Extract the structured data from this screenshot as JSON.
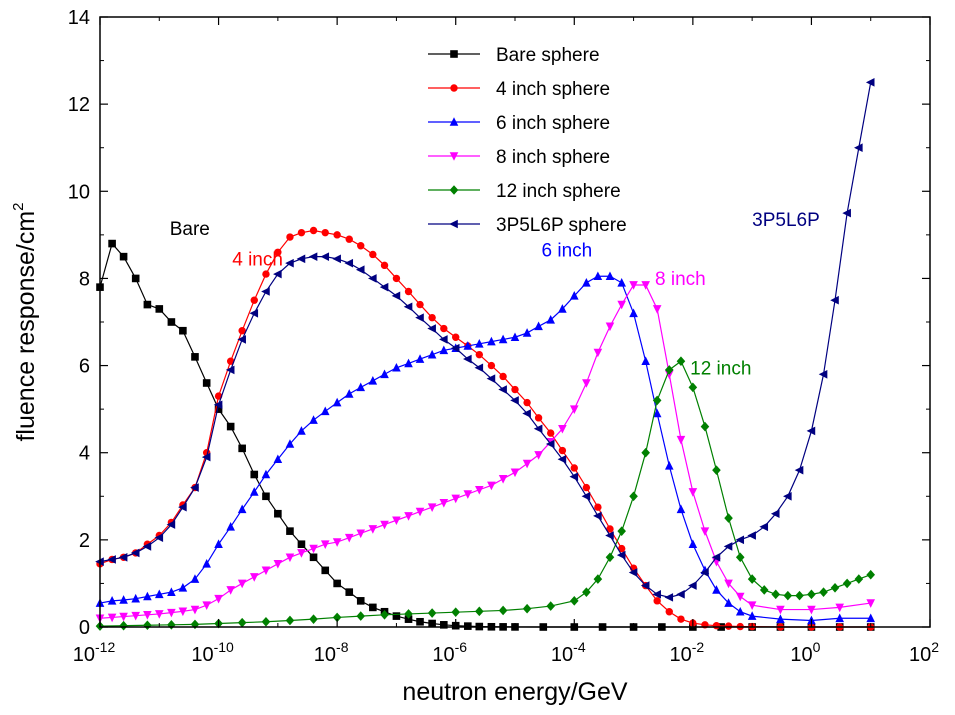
{
  "chart_data": {
    "type": "scatter",
    "title": "",
    "xlabel": "neutron energy/GeV",
    "ylabel": "fluence response/cm",
    "ylabel_superscript": "2",
    "x_scale": "log",
    "xlim": [
      1e-12,
      100
    ],
    "ylim": [
      0,
      14
    ],
    "x_ticks": [
      {
        "base": "10",
        "exp": "-12"
      },
      {
        "base": "10",
        "exp": "-10"
      },
      {
        "base": "10",
        "exp": "-8"
      },
      {
        "base": "10",
        "exp": "-6"
      },
      {
        "base": "10",
        "exp": "-4"
      },
      {
        "base": "10",
        "exp": "-2"
      },
      {
        "base": "10",
        "exp": "0"
      },
      {
        "base": "10",
        "exp": "2"
      }
    ],
    "y_ticks": [
      "0",
      "2",
      "4",
      "6",
      "8",
      "10",
      "12",
      "14"
    ],
    "grid": false,
    "legend_position": "top-center",
    "series": [
      {
        "name": "Bare sphere",
        "color": "#000000",
        "marker": "square",
        "x": [
          1e-12,
          1.6e-12,
          2.5e-12,
          4e-12,
          6.3e-12,
          1e-11,
          1.6e-11,
          2.5e-11,
          4e-11,
          6.3e-11,
          1e-10,
          1.6e-10,
          2.5e-10,
          4e-10,
          6.3e-10,
          1e-09,
          1.6e-09,
          2.5e-09,
          4e-09,
          6.3e-09,
          1e-08,
          1.6e-08,
          2.5e-08,
          4e-08,
          6.3e-08,
          1e-07,
          1.6e-07,
          2.5e-07,
          4e-07,
          6.3e-07,
          1e-06,
          1.6e-06,
          2.5e-06,
          4e-06,
          6.3e-06,
          1e-05,
          3e-05,
          0.0001,
          0.0003,
          0.001,
          0.003,
          0.01,
          0.03,
          0.1,
          0.3,
          1,
          3,
          10
        ],
        "y": [
          7.8,
          8.8,
          8.5,
          8.0,
          7.4,
          7.3,
          7.0,
          6.8,
          6.2,
          5.6,
          5.0,
          4.6,
          4.1,
          3.5,
          3.0,
          2.6,
          2.2,
          1.9,
          1.6,
          1.3,
          1.0,
          0.8,
          0.6,
          0.45,
          0.35,
          0.25,
          0.18,
          0.12,
          0.08,
          0.05,
          0.03,
          0.02,
          0.01,
          0.005,
          0.003,
          0.002,
          0.0,
          0.0,
          0.0,
          0.0,
          0.0,
          0.0,
          0.0,
          0.0,
          0.0,
          0.0,
          0.0,
          0.0
        ]
      },
      {
        "name": "4 inch sphere",
        "color": "#ff0000",
        "marker": "circle",
        "x": [
          1e-12,
          1.6e-12,
          2.5e-12,
          4e-12,
          6.3e-12,
          1e-11,
          1.6e-11,
          2.5e-11,
          4e-11,
          6.3e-11,
          1e-10,
          1.6e-10,
          2.5e-10,
          4e-10,
          6.3e-10,
          1e-09,
          1.6e-09,
          2.5e-09,
          4e-09,
          6.3e-09,
          1e-08,
          1.6e-08,
          2.5e-08,
          4e-08,
          6.3e-08,
          1e-07,
          1.6e-07,
          2.5e-07,
          4e-07,
          6.3e-07,
          1e-06,
          1.6e-06,
          2.5e-06,
          4e-06,
          6.3e-06,
          1e-05,
          1.6e-05,
          2.5e-05,
          4e-05,
          6.3e-05,
          0.0001,
          0.00016,
          0.00025,
          0.0004,
          0.00063,
          0.001,
          0.0016,
          0.0025,
          0.004,
          0.0063,
          0.01,
          0.016,
          0.025,
          0.04,
          0.063,
          0.1,
          0.3,
          1,
          3,
          10
        ],
        "y": [
          1.45,
          1.55,
          1.6,
          1.7,
          1.9,
          2.1,
          2.4,
          2.8,
          3.2,
          4.0,
          5.3,
          6.1,
          6.8,
          7.5,
          8.1,
          8.6,
          8.95,
          9.05,
          9.1,
          9.05,
          9.0,
          8.9,
          8.75,
          8.55,
          8.3,
          8.0,
          7.7,
          7.4,
          7.1,
          6.85,
          6.65,
          6.45,
          6.25,
          6.0,
          5.75,
          5.45,
          5.15,
          4.8,
          4.45,
          4.05,
          3.65,
          3.2,
          2.75,
          2.25,
          1.8,
          1.35,
          0.95,
          0.6,
          0.35,
          0.18,
          0.09,
          0.05,
          0.03,
          0.02,
          0.01,
          0.01,
          0.0,
          0.0,
          0.0,
          0.0
        ]
      },
      {
        "name": "6 inch sphere",
        "color": "#0000ff",
        "marker": "triangle-up",
        "x": [
          1e-12,
          1.6e-12,
          2.5e-12,
          4e-12,
          6.3e-12,
          1e-11,
          1.6e-11,
          2.5e-11,
          4e-11,
          6.3e-11,
          1e-10,
          1.6e-10,
          2.5e-10,
          4e-10,
          6.3e-10,
          1e-09,
          1.6e-09,
          2.5e-09,
          4e-09,
          6.3e-09,
          1e-08,
          1.6e-08,
          2.5e-08,
          4e-08,
          6.3e-08,
          1e-07,
          1.6e-07,
          2.5e-07,
          4e-07,
          6.3e-07,
          1e-06,
          1.6e-06,
          2.5e-06,
          4e-06,
          6.3e-06,
          1e-05,
          1.6e-05,
          2.5e-05,
          4e-05,
          6.3e-05,
          0.0001,
          0.00016,
          0.00025,
          0.0004,
          0.00063,
          0.001,
          0.0016,
          0.0025,
          0.004,
          0.0063,
          0.01,
          0.016,
          0.025,
          0.04,
          0.063,
          0.1,
          0.3,
          1,
          3,
          10
        ],
        "y": [
          0.55,
          0.6,
          0.62,
          0.65,
          0.7,
          0.75,
          0.8,
          0.9,
          1.1,
          1.45,
          1.9,
          2.3,
          2.7,
          3.1,
          3.5,
          3.85,
          4.2,
          4.5,
          4.75,
          4.95,
          5.15,
          5.35,
          5.5,
          5.65,
          5.8,
          5.95,
          6.05,
          6.15,
          6.25,
          6.35,
          6.4,
          6.45,
          6.5,
          6.55,
          6.6,
          6.65,
          6.75,
          6.9,
          7.05,
          7.3,
          7.6,
          7.9,
          8.05,
          8.05,
          7.9,
          7.2,
          6.1,
          4.9,
          3.7,
          2.7,
          1.9,
          1.3,
          0.85,
          0.55,
          0.35,
          0.25,
          0.18,
          0.15,
          0.2,
          0.2
        ]
      },
      {
        "name": "8 inch sphere",
        "color": "#ff00ff",
        "marker": "triangle-down",
        "x": [
          1e-12,
          1.6e-12,
          2.5e-12,
          4e-12,
          6.3e-12,
          1e-11,
          1.6e-11,
          2.5e-11,
          4e-11,
          6.3e-11,
          1e-10,
          1.6e-10,
          2.5e-10,
          4e-10,
          6.3e-10,
          1e-09,
          1.6e-09,
          2.5e-09,
          4e-09,
          6.3e-09,
          1e-08,
          1.6e-08,
          2.5e-08,
          4e-08,
          6.3e-08,
          1e-07,
          1.6e-07,
          2.5e-07,
          4e-07,
          6.3e-07,
          1e-06,
          1.6e-06,
          2.5e-06,
          4e-06,
          6.3e-06,
          1e-05,
          1.6e-05,
          2.5e-05,
          4e-05,
          6.3e-05,
          0.0001,
          0.00016,
          0.00025,
          0.0004,
          0.00063,
          0.001,
          0.0016,
          0.0025,
          0.004,
          0.0063,
          0.01,
          0.016,
          0.025,
          0.04,
          0.063,
          0.1,
          0.3,
          1,
          3,
          10
        ],
        "y": [
          0.2,
          0.22,
          0.24,
          0.26,
          0.28,
          0.3,
          0.33,
          0.36,
          0.4,
          0.5,
          0.65,
          0.85,
          1.0,
          1.15,
          1.3,
          1.45,
          1.6,
          1.7,
          1.8,
          1.9,
          1.95,
          2.05,
          2.15,
          2.25,
          2.35,
          2.45,
          2.55,
          2.65,
          2.75,
          2.85,
          2.95,
          3.05,
          3.15,
          3.25,
          3.4,
          3.55,
          3.75,
          3.95,
          4.25,
          4.55,
          5.0,
          5.6,
          6.3,
          6.9,
          7.4,
          7.85,
          7.85,
          7.3,
          5.8,
          4.3,
          3.1,
          2.2,
          1.5,
          1.0,
          0.7,
          0.5,
          0.4,
          0.4,
          0.45,
          0.55
        ]
      },
      {
        "name": "12 inch sphere",
        "color": "#008000",
        "marker": "diamond",
        "x": [
          1e-12,
          2.5e-12,
          6.3e-12,
          1.6e-11,
          4e-11,
          1e-10,
          2.5e-10,
          6.3e-10,
          1.6e-09,
          4e-09,
          1e-08,
          2.5e-08,
          6.3e-08,
          1.6e-07,
          4e-07,
          1e-06,
          2.5e-06,
          6.3e-06,
          1.6e-05,
          4e-05,
          0.0001,
          0.00016,
          0.00025,
          0.0004,
          0.00063,
          0.001,
          0.0016,
          0.0025,
          0.004,
          0.0063,
          0.01,
          0.016,
          0.025,
          0.04,
          0.063,
          0.1,
          0.16,
          0.25,
          0.4,
          0.63,
          1,
          1.6,
          2.5,
          4,
          6.3,
          10
        ],
        "y": [
          0.02,
          0.03,
          0.04,
          0.05,
          0.06,
          0.08,
          0.1,
          0.12,
          0.15,
          0.18,
          0.22,
          0.25,
          0.28,
          0.3,
          0.32,
          0.34,
          0.36,
          0.38,
          0.42,
          0.48,
          0.6,
          0.8,
          1.1,
          1.6,
          2.2,
          3.0,
          4.0,
          5.2,
          5.9,
          6.1,
          5.5,
          4.6,
          3.6,
          2.5,
          1.6,
          1.1,
          0.85,
          0.75,
          0.72,
          0.72,
          0.75,
          0.8,
          0.9,
          1.0,
          1.1,
          1.2
        ]
      },
      {
        "name": "3P5L6P sphere",
        "color": "#000080",
        "marker": "triangle-left",
        "x": [
          1e-12,
          1.6e-12,
          2.5e-12,
          4e-12,
          6.3e-12,
          1e-11,
          1.6e-11,
          2.5e-11,
          4e-11,
          6.3e-11,
          1e-10,
          1.6e-10,
          2.5e-10,
          4e-10,
          6.3e-10,
          1e-09,
          1.6e-09,
          2.5e-09,
          4e-09,
          6.3e-09,
          1e-08,
          1.6e-08,
          2.5e-08,
          4e-08,
          6.3e-08,
          1e-07,
          1.6e-07,
          2.5e-07,
          4e-07,
          6.3e-07,
          1e-06,
          1.6e-06,
          2.5e-06,
          4e-06,
          6.3e-06,
          1e-05,
          1.6e-05,
          2.5e-05,
          4e-05,
          6.3e-05,
          0.0001,
          0.00016,
          0.00025,
          0.0004,
          0.00063,
          0.001,
          0.0016,
          0.0025,
          0.004,
          0.0063,
          0.01,
          0.016,
          0.025,
          0.04,
          0.063,
          0.1,
          0.16,
          0.25,
          0.4,
          0.63,
          1,
          1.6,
          2.5,
          4,
          6.3,
          10
        ],
        "y": [
          1.5,
          1.55,
          1.6,
          1.7,
          1.85,
          2.05,
          2.35,
          2.75,
          3.2,
          3.9,
          5.1,
          5.9,
          6.6,
          7.2,
          7.7,
          8.1,
          8.35,
          8.45,
          8.5,
          8.5,
          8.45,
          8.35,
          8.2,
          8.0,
          7.8,
          7.6,
          7.35,
          7.1,
          6.85,
          6.6,
          6.4,
          6.15,
          5.95,
          5.7,
          5.45,
          5.2,
          4.9,
          4.55,
          4.2,
          3.85,
          3.45,
          3.0,
          2.55,
          2.1,
          1.65,
          1.25,
          0.95,
          0.75,
          0.68,
          0.75,
          0.95,
          1.25,
          1.6,
          1.85,
          2.0,
          2.1,
          2.3,
          2.6,
          3.0,
          3.6,
          4.5,
          5.8,
          7.5,
          9.5,
          11.0,
          12.5
        ]
      }
    ],
    "annotations": [
      {
        "text": "Bare",
        "x": 1.5e-11,
        "y": 9.0,
        "color": "#000000"
      },
      {
        "text": "4 inch",
        "x": 1.7e-10,
        "y": 8.3,
        "color": "#ff0000"
      },
      {
        "text": "6 inch",
        "x": 2.8e-05,
        "y": 8.5,
        "color": "#0000ff"
      },
      {
        "text": "8 inch",
        "x": 0.0023,
        "y": 7.85,
        "color": "#ff00ff"
      },
      {
        "text": "12 inch",
        "x": 0.009,
        "y": 5.8,
        "color": "#008000"
      },
      {
        "text": "3P5L6P",
        "x": 0.1,
        "y": 9.2,
        "color": "#000080"
      }
    ]
  }
}
